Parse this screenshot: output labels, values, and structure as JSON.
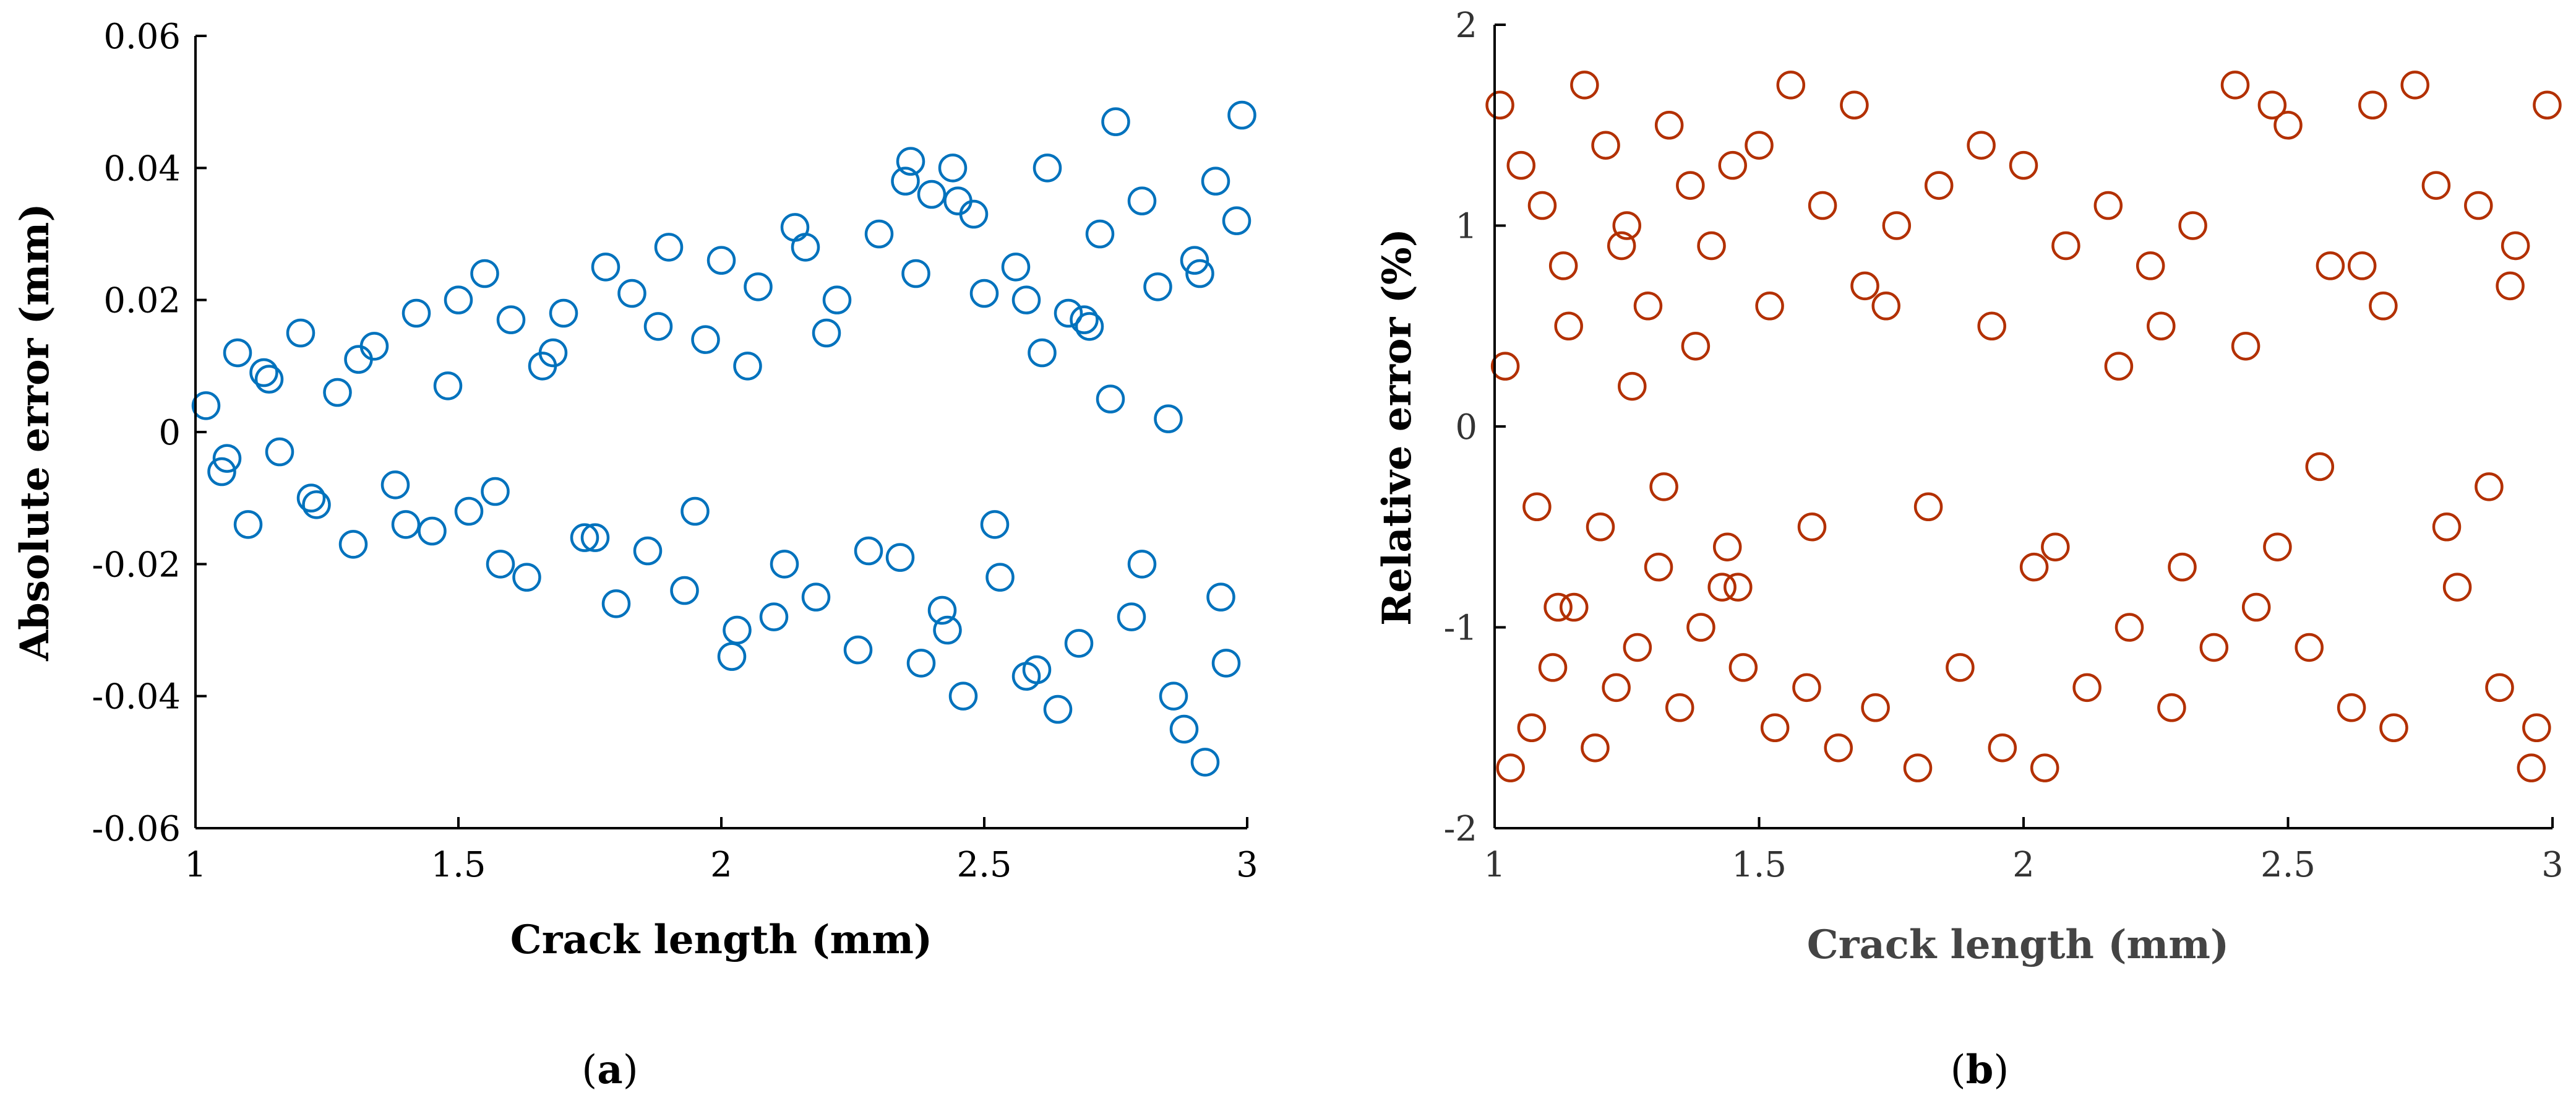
{
  "chart_data": [
    {
      "type": "scatter",
      "panel_label": "a",
      "xlabel": "Crack length (mm)",
      "ylabel": "Absolute error (mm)",
      "xlim": [
        1,
        3
      ],
      "ylim": [
        -0.06,
        0.06
      ],
      "xticks": [
        "1",
        "1.5",
        "2",
        "2.5",
        "3"
      ],
      "yticks": [
        "-0.06",
        "-0.04",
        "-0.02",
        "0",
        "0.02",
        "0.04",
        "0.06"
      ],
      "marker": "open-circle",
      "color": "#0072BD",
      "series": [
        {
          "name": "Absolute error",
          "x": [
            1.02,
            1.05,
            1.08,
            1.1,
            1.13,
            1.16,
            1.2,
            1.23,
            1.27,
            1.3,
            1.34,
            1.38,
            1.42,
            1.45,
            1.5,
            1.52,
            1.55,
            1.58,
            1.6,
            1.63,
            1.66,
            1.7,
            1.74,
            1.78,
            1.8,
            1.83,
            1.86,
            1.9,
            1.93,
            1.97,
            2.0,
            2.03,
            2.07,
            2.1,
            2.14,
            2.18,
            2.22,
            2.26,
            2.3,
            2.34,
            2.36,
            2.38,
            2.4,
            2.42,
            2.44,
            2.46,
            2.48,
            2.5,
            2.53,
            2.56,
            2.58,
            2.6,
            2.62,
            2.64,
            2.66,
            2.68,
            2.7,
            2.72,
            2.75,
            2.78,
            2.8,
            2.83,
            2.86,
            2.88,
            2.9,
            2.92,
            2.94,
            2.96,
            2.98,
            2.99,
            1.06,
            1.14,
            1.22,
            1.31,
            1.4,
            1.48,
            1.57,
            1.68,
            1.76,
            1.88,
            1.95,
            2.05,
            2.12,
            2.2,
            2.28,
            2.37,
            2.43,
            2.52,
            2.61,
            2.74,
            2.85,
            2.95,
            2.02,
            2.16,
            2.35,
            2.45,
            2.58,
            2.69,
            2.8,
            2.91
          ],
          "y": [
            0.004,
            -0.006,
            0.012,
            -0.014,
            0.009,
            -0.003,
            0.015,
            -0.011,
            0.006,
            -0.017,
            0.013,
            -0.008,
            0.018,
            -0.015,
            0.02,
            -0.012,
            0.024,
            -0.02,
            0.017,
            -0.022,
            0.01,
            0.018,
            -0.016,
            0.025,
            -0.026,
            0.021,
            -0.018,
            0.028,
            -0.024,
            0.014,
            0.026,
            -0.03,
            0.022,
            -0.028,
            0.031,
            -0.025,
            0.02,
            -0.033,
            0.03,
            -0.019,
            0.041,
            -0.035,
            0.036,
            -0.027,
            0.04,
            -0.04,
            0.033,
            0.021,
            -0.022,
            0.025,
            0.02,
            -0.036,
            0.04,
            -0.042,
            0.018,
            -0.032,
            0.016,
            0.03,
            0.047,
            -0.028,
            0.035,
            0.022,
            -0.04,
            -0.045,
            0.026,
            -0.05,
            0.038,
            -0.035,
            0.032,
            0.048,
            -0.004,
            0.008,
            -0.01,
            0.011,
            -0.014,
            0.007,
            -0.009,
            0.012,
            -0.016,
            0.016,
            -0.012,
            0.01,
            -0.02,
            0.015,
            -0.018,
            0.024,
            -0.03,
            -0.014,
            0.012,
            0.005,
            0.002,
            -0.025,
            -0.034,
            0.028,
            0.038,
            0.035,
            -0.037,
            0.017,
            -0.02,
            0.024
          ]
        }
      ]
    },
    {
      "type": "scatter",
      "panel_label": "b",
      "xlabel": "Crack length (mm)",
      "ylabel": "Relative error (%)",
      "xlim": [
        1,
        3
      ],
      "ylim": [
        -2,
        2
      ],
      "xticks": [
        "1",
        "1.5",
        "2",
        "2.5",
        "3"
      ],
      "yticks": [
        "-2",
        "-1",
        "0",
        "1",
        "2"
      ],
      "marker": "open-circle",
      "color": "#B33000",
      "series": [
        {
          "name": "Relative error",
          "x": [
            1.01,
            1.03,
            1.05,
            1.07,
            1.09,
            1.11,
            1.13,
            1.15,
            1.17,
            1.19,
            1.21,
            1.23,
            1.25,
            1.27,
            1.29,
            1.31,
            1.33,
            1.35,
            1.37,
            1.39,
            1.41,
            1.43,
            1.45,
            1.47,
            1.5,
            1.53,
            1.56,
            1.59,
            1.62,
            1.65,
            1.68,
            1.72,
            1.76,
            1.8,
            1.84,
            1.88,
            1.92,
            1.96,
            2.0,
            2.04,
            2.08,
            2.12,
            2.16,
            2.2,
            2.24,
            2.28,
            2.32,
            2.36,
            2.4,
            2.44,
            2.47,
            2.5,
            2.54,
            2.58,
            2.62,
            2.66,
            2.7,
            2.74,
            2.78,
            2.82,
            2.86,
            2.9,
            2.93,
            2.96,
            2.99,
            1.02,
            1.08,
            1.14,
            1.2,
            1.26,
            1.32,
            1.38,
            1.44,
            1.52,
            1.6,
            1.7,
            1.82,
            1.94,
            2.06,
            2.18,
            2.3,
            2.42,
            2.56,
            2.68,
            2.8,
            2.92,
            1.12,
            1.24,
            1.46,
            1.74,
            2.02,
            2.26,
            2.48,
            2.64,
            2.88,
            2.97
          ],
          "y": [
            1.6,
            -1.7,
            1.3,
            -1.5,
            1.1,
            -1.2,
            0.8,
            -0.9,
            1.7,
            -1.6,
            1.4,
            -1.3,
            1.0,
            -1.1,
            0.6,
            -0.7,
            1.5,
            -1.4,
            1.2,
            -1.0,
            0.9,
            -0.8,
            1.3,
            -1.2,
            1.4,
            -1.5,
            1.7,
            -1.3,
            1.1,
            -1.6,
            1.6,
            -1.4,
            1.0,
            -1.7,
            1.2,
            -1.2,
            1.4,
            -1.6,
            1.3,
            -1.7,
            0.9,
            -1.3,
            1.1,
            -1.0,
            0.8,
            -1.4,
            1.0,
            -1.1,
            1.7,
            -0.9,
            1.6,
            1.5,
            -1.1,
            0.8,
            -1.4,
            1.6,
            -1.5,
            1.7,
            1.2,
            -0.8,
            1.1,
            -1.3,
            0.9,
            -1.7,
            1.6,
            0.3,
            -0.4,
            0.5,
            -0.5,
            0.2,
            -0.3,
            0.4,
            -0.6,
            0.6,
            -0.5,
            0.7,
            -0.4,
            0.5,
            -0.6,
            0.3,
            -0.7,
            0.4,
            -0.2,
            0.6,
            -0.5,
            0.7,
            -0.9,
            0.9,
            -0.8,
            0.6,
            -0.7,
            0.5,
            -0.6,
            0.8,
            -0.3,
            -1.5
          ]
        }
      ]
    }
  ]
}
